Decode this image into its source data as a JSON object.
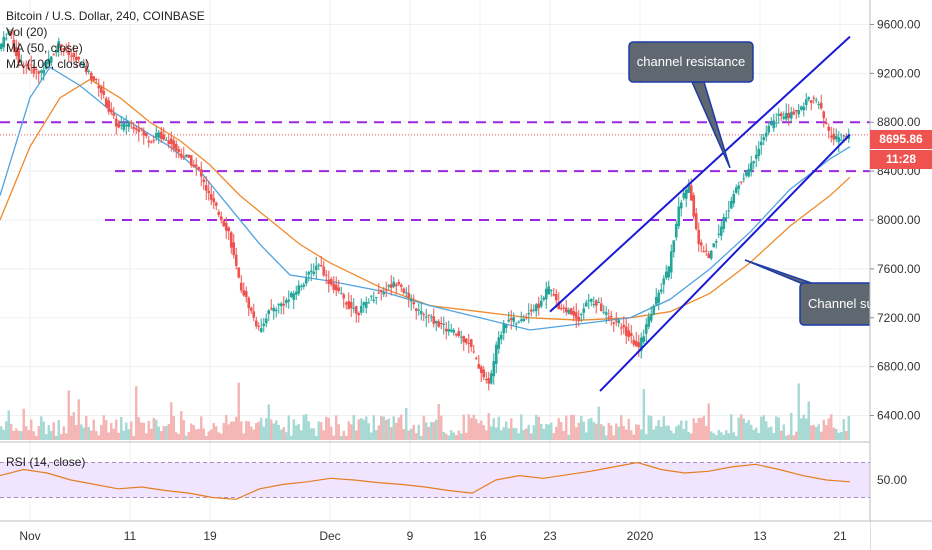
{
  "legend": {
    "symbol": "Bitcoin / U.S. Dollar, 240, COINBASE",
    "vol": "Vol (20)",
    "ma50": "MA (50, close)",
    "ma100": "MA (100, close)"
  },
  "last_price": "8695.86",
  "countdown": "11:28",
  "rsi_label": "RSI (14, close)",
  "annotations": {
    "resistance": "channel resistance",
    "support": "Channel support"
  },
  "colors": {
    "up": "#26a69a",
    "down": "#ef5350",
    "ma50": "#4fa3e0",
    "ma100": "#f08a2c",
    "horizontal_levels": "#9c27e0",
    "channel": "#1a1ad8",
    "rsi": "#e67e22",
    "rsi_band": "#f0e4ff"
  },
  "chart_data": {
    "type": "line",
    "title": "Bitcoin / U.S. Dollar, 240, COINBASE",
    "ylim": [
      6200,
      9800
    ],
    "y_ticks": [
      "9600.00",
      "9200.00",
      "8800.00",
      "8400.00",
      "8000.00",
      "7600.00",
      "7200.00",
      "6800.00",
      "6400.00"
    ],
    "y_tick_values": [
      9600,
      9200,
      8800,
      8400,
      8000,
      7600,
      7200,
      6800,
      6400
    ],
    "x_ticks": [
      "Nov",
      "11",
      "19",
      "Dec",
      "9",
      "16",
      "23",
      "2020",
      "13",
      "21"
    ],
    "x_tick_days": [
      0,
      10,
      18,
      30,
      38,
      45,
      52,
      61,
      73,
      81
    ],
    "xlim_days": [
      -3,
      84
    ],
    "price_path": [
      [
        -3,
        9400
      ],
      [
        -2,
        9550
      ],
      [
        -1,
        9300
      ],
      [
        0,
        9250
      ],
      [
        1,
        9200
      ],
      [
        2,
        9300
      ],
      [
        3,
        9450
      ],
      [
        4,
        9350
      ],
      [
        5,
        9300
      ],
      [
        6,
        9200
      ],
      [
        7,
        9100
      ],
      [
        8,
        8900
      ],
      [
        9,
        8750
      ],
      [
        10,
        8800
      ],
      [
        11,
        8750
      ],
      [
        12,
        8650
      ],
      [
        13,
        8700
      ],
      [
        14,
        8650
      ],
      [
        15,
        8550
      ],
      [
        16,
        8500
      ],
      [
        17,
        8400
      ],
      [
        18,
        8200
      ],
      [
        19,
        8050
      ],
      [
        20,
        7900
      ],
      [
        21,
        7500
      ],
      [
        22,
        7300
      ],
      [
        23,
        7100
      ],
      [
        24,
        7250
      ],
      [
        25,
        7300
      ],
      [
        26,
        7350
      ],
      [
        27,
        7450
      ],
      [
        28,
        7550
      ],
      [
        29,
        7650
      ],
      [
        30,
        7500
      ],
      [
        31,
        7400
      ],
      [
        32,
        7300
      ],
      [
        33,
        7250
      ],
      [
        34,
        7350
      ],
      [
        35,
        7400
      ],
      [
        36,
        7450
      ],
      [
        37,
        7500
      ],
      [
        38,
        7350
      ],
      [
        39,
        7250
      ],
      [
        40,
        7200
      ],
      [
        41,
        7150
      ],
      [
        42,
        7100
      ],
      [
        43,
        7050
      ],
      [
        44,
        7000
      ],
      [
        45,
        6800
      ],
      [
        46,
        6650
      ],
      [
        47,
        7050
      ],
      [
        48,
        7200
      ],
      [
        49,
        7150
      ],
      [
        50,
        7250
      ],
      [
        51,
        7300
      ],
      [
        52,
        7450
      ],
      [
        53,
        7300
      ],
      [
        54,
        7250
      ],
      [
        55,
        7200
      ],
      [
        56,
        7350
      ],
      [
        57,
        7300
      ],
      [
        58,
        7200
      ],
      [
        59,
        7150
      ],
      [
        60,
        7050
      ],
      [
        61,
        6950
      ],
      [
        62,
        7200
      ],
      [
        63,
        7400
      ],
      [
        64,
        7600
      ],
      [
        65,
        8100
      ],
      [
        66,
        8300
      ],
      [
        67,
        7800
      ],
      [
        68,
        7700
      ],
      [
        69,
        7900
      ],
      [
        70,
        8100
      ],
      [
        71,
        8300
      ],
      [
        72,
        8400
      ],
      [
        73,
        8600
      ],
      [
        74,
        8750
      ],
      [
        75,
        8850
      ],
      [
        76,
        8850
      ],
      [
        77,
        8900
      ],
      [
        78,
        9000
      ],
      [
        79,
        8950
      ],
      [
        80,
        8700
      ],
      [
        81,
        8650
      ],
      [
        82,
        8696
      ]
    ],
    "ma50_path": [
      [
        -3,
        8200
      ],
      [
        0,
        9000
      ],
      [
        2,
        9250
      ],
      [
        5,
        9100
      ],
      [
        8,
        8900
      ],
      [
        11,
        8750
      ],
      [
        14,
        8600
      ],
      [
        17,
        8400
      ],
      [
        20,
        8100
      ],
      [
        23,
        7800
      ],
      [
        26,
        7550
      ],
      [
        30,
        7500
      ],
      [
        35,
        7420
      ],
      [
        40,
        7300
      ],
      [
        45,
        7200
      ],
      [
        50,
        7100
      ],
      [
        55,
        7150
      ],
      [
        60,
        7200
      ],
      [
        64,
        7350
      ],
      [
        68,
        7600
      ],
      [
        72,
        7900
      ],
      [
        76,
        8250
      ],
      [
        80,
        8500
      ],
      [
        82,
        8600
      ]
    ],
    "ma100_path": [
      [
        -3,
        8000
      ],
      [
        0,
        8600
      ],
      [
        3,
        9000
      ],
      [
        6,
        9150
      ],
      [
        9,
        9000
      ],
      [
        12,
        8800
      ],
      [
        15,
        8650
      ],
      [
        18,
        8450
      ],
      [
        21,
        8200
      ],
      [
        24,
        8000
      ],
      [
        27,
        7800
      ],
      [
        30,
        7650
      ],
      [
        35,
        7450
      ],
      [
        40,
        7300
      ],
      [
        45,
        7250
      ],
      [
        50,
        7200
      ],
      [
        55,
        7180
      ],
      [
        60,
        7200
      ],
      [
        64,
        7250
      ],
      [
        68,
        7400
      ],
      [
        72,
        7650
      ],
      [
        76,
        7950
      ],
      [
        80,
        8200
      ],
      [
        82,
        8350
      ]
    ],
    "horizontal_levels": [
      8800,
      8400,
      8000
    ],
    "channel_resistance": [
      [
        52,
        7250
      ],
      [
        82,
        9500
      ]
    ],
    "channel_support": [
      [
        57,
        6600
      ],
      [
        82,
        8700
      ]
    ],
    "rsi": {
      "label": "RSI (14, close)",
      "tick": "50.00",
      "band": [
        30,
        70
      ],
      "values": [
        55,
        62,
        58,
        50,
        45,
        40,
        42,
        38,
        35,
        30,
        28,
        40,
        45,
        48,
        52,
        50,
        47,
        45,
        42,
        38,
        35,
        50,
        55,
        52,
        56,
        60,
        65,
        70,
        62,
        58,
        60,
        65,
        68,
        62,
        55,
        50,
        48
      ]
    }
  }
}
